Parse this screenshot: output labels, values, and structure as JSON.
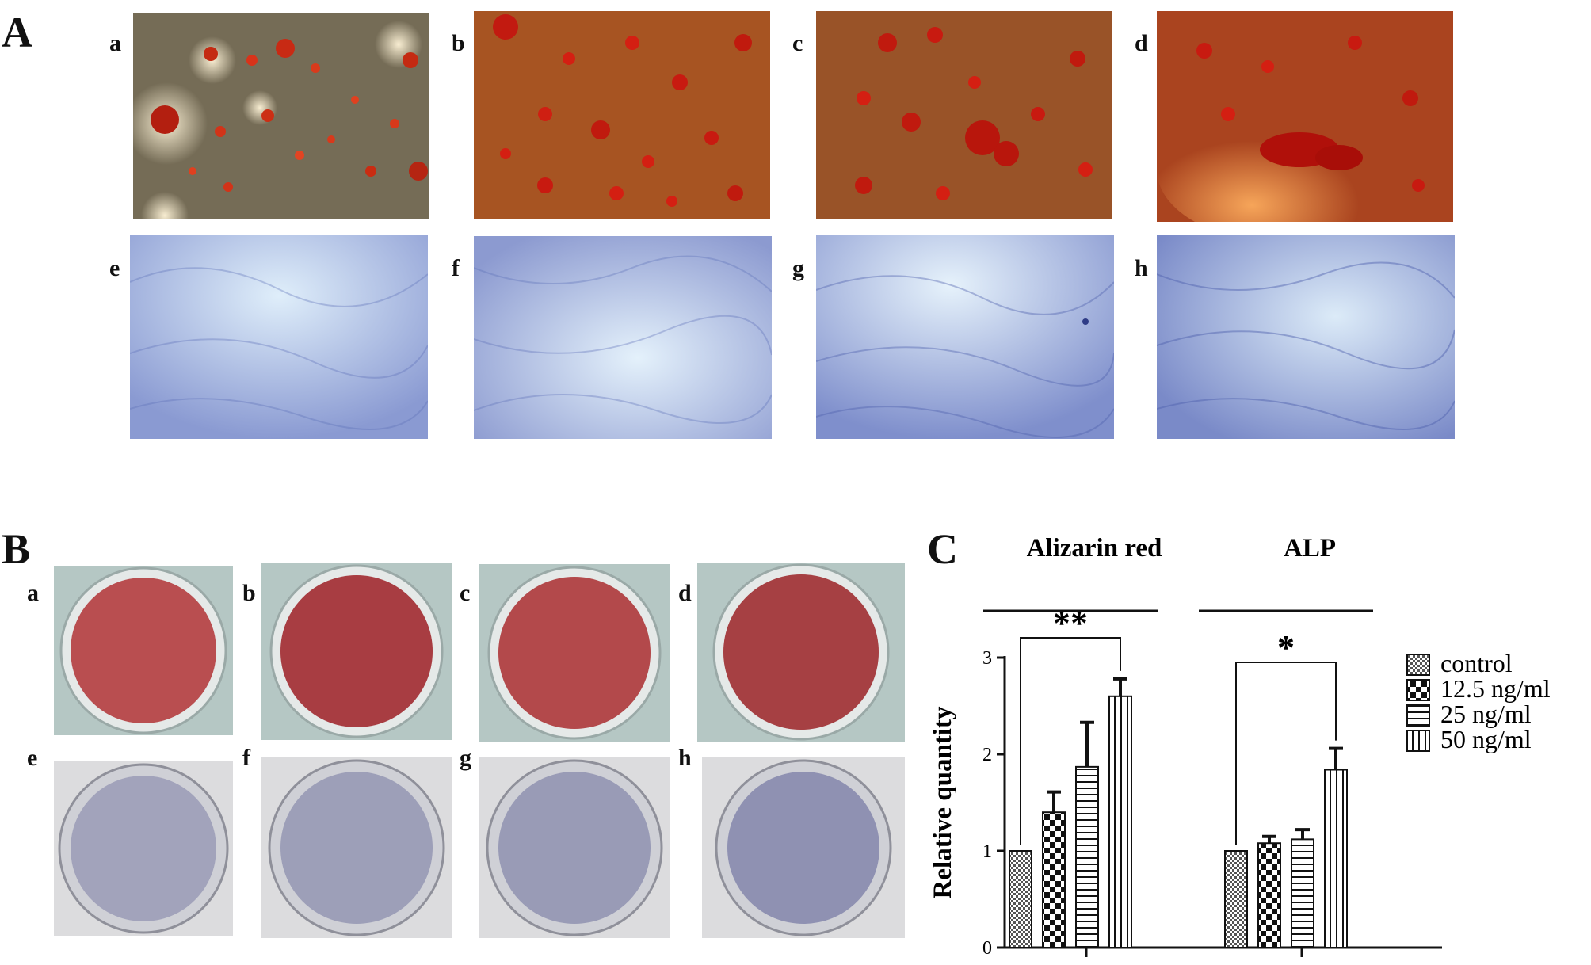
{
  "figure": {
    "panel_A": {
      "letter": "A",
      "sub_labels": [
        "a",
        "b",
        "c",
        "d",
        "e",
        "f",
        "g",
        "h"
      ]
    },
    "panel_B": {
      "letter": "B",
      "sub_labels": [
        "a",
        "b",
        "c",
        "d",
        "e",
        "f",
        "g",
        "h"
      ]
    },
    "panel_C": {
      "letter": "C"
    }
  },
  "chart_data": {
    "type": "bar",
    "groups": [
      "Alizarin  red",
      "ALP"
    ],
    "ylabel": "Relative quantity",
    "ylim": [
      0,
      3
    ],
    "yticks": [
      "0",
      "1",
      "2",
      "3"
    ],
    "series": [
      {
        "name": "control",
        "values": [
          1.0,
          1.0
        ],
        "errors": [
          0.0,
          0.0
        ],
        "pattern": "stipple"
      },
      {
        "name": "12.5 ng/ml",
        "values": [
          1.4,
          1.08
        ],
        "errors": [
          0.21,
          0.07
        ],
        "pattern": "checker"
      },
      {
        "name": "25 ng/ml",
        "values": [
          1.87,
          1.12
        ],
        "errors": [
          0.46,
          0.1
        ],
        "pattern": "horizontal"
      },
      {
        "name": "50 ng/ml",
        "values": [
          2.6,
          1.84
        ],
        "errors": [
          0.18,
          0.22
        ],
        "pattern": "vertical"
      }
    ],
    "significance": [
      {
        "group": "Alizarin  red",
        "label": "**"
      },
      {
        "group": "ALP",
        "label": "*"
      }
    ],
    "legend_position": "right"
  }
}
